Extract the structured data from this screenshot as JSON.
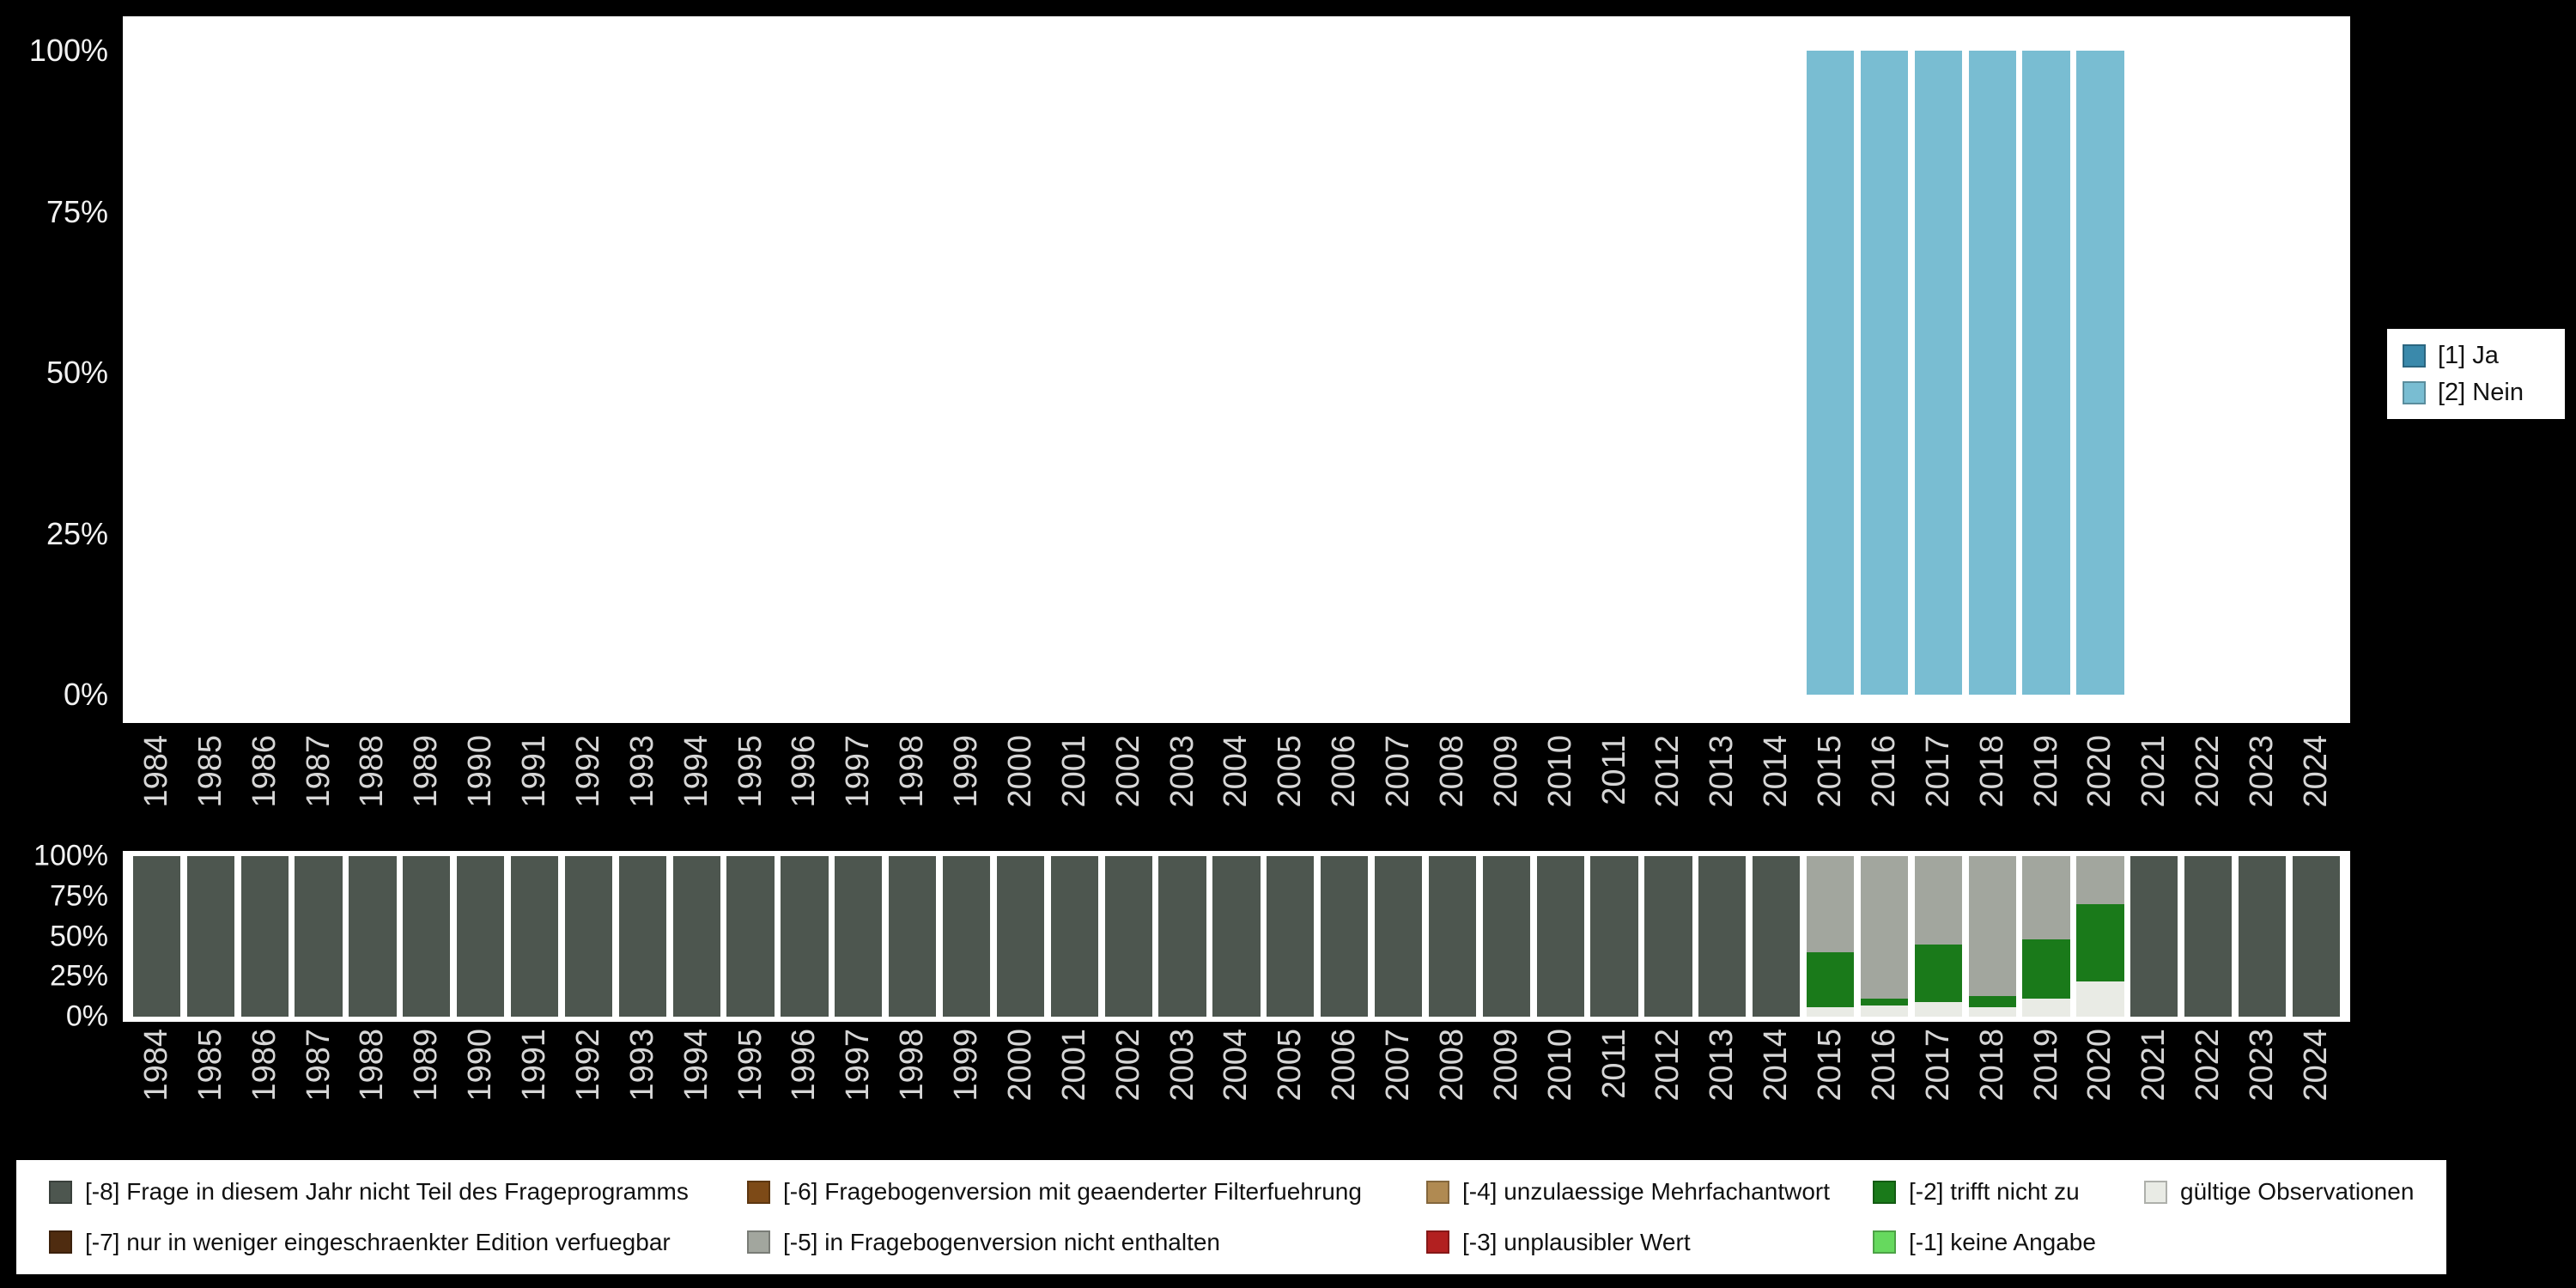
{
  "colors": {
    "background": "#000000",
    "panel": "#ffffff",
    "ja_blue": "#3a89ab",
    "nein_blue": "#79bdd2",
    "axis_text": "#d6d6d6",
    "ytick_text": "#f2f2f2"
  },
  "legend_top": {
    "items": [
      {
        "label": "[1] Ja",
        "color": "#3a89ab"
      },
      {
        "label": "[2] Nein",
        "color": "#79bdd2"
      }
    ]
  },
  "legend_bottom": {
    "items": [
      {
        "label": "[-8] Frage in diesem Jahr nicht Teil des Frageprogramms",
        "color": "#4d564f"
      },
      {
        "label": "[-6] Fragebogenversion mit geaenderter Filterfuehrung",
        "color": "#7d4a17"
      },
      {
        "label": "[-4] unzulaessige Mehrfachantwort",
        "color": "#b08a52"
      },
      {
        "label": "[-2] trifft nicht zu",
        "color": "#1a7a1a"
      },
      {
        "label": "gültige Observationen",
        "color": "#e9ebe5"
      },
      {
        "label": "[-7] nur in weniger eingeschraenkter Edition verfuegbar",
        "color": "#4f2c10"
      },
      {
        "label": "[-5] in Fragebogenversion nicht enthalten",
        "color": "#a2a69e"
      },
      {
        "label": "[-3] unplausibler Wert",
        "color": "#b22020"
      },
      {
        "label": "[-1] keine Angabe",
        "color": "#66d95e"
      }
    ]
  },
  "chart_data": [
    {
      "type": "bar",
      "stacked": true,
      "normalized": "percent",
      "title": "",
      "xlabel": "",
      "ylabel": "",
      "ylim": [
        0,
        100
      ],
      "grid": false,
      "legend_position": "right",
      "yticks": [
        "0%",
        "25%",
        "50%",
        "75%",
        "100%"
      ],
      "x": [
        "1984",
        "1985",
        "1986",
        "1987",
        "1988",
        "1989",
        "1990",
        "1991",
        "1992",
        "1993",
        "1994",
        "1995",
        "1996",
        "1997",
        "1998",
        "1999",
        "2000",
        "2001",
        "2002",
        "2003",
        "2004",
        "2005",
        "2006",
        "2007",
        "2008",
        "2009",
        "2010",
        "2011",
        "2012",
        "2013",
        "2014",
        "2015",
        "2016",
        "2017",
        "2018",
        "2019",
        "2020",
        "2021",
        "2022",
        "2023",
        "2024"
      ],
      "series": [
        {
          "name": "[1] Ja",
          "color": "#3a89ab",
          "values": [
            0,
            0,
            0,
            0,
            0,
            0,
            0,
            0,
            0,
            0,
            0,
            0,
            0,
            0,
            0,
            0,
            0,
            0,
            0,
            0,
            0,
            0,
            0,
            0,
            0,
            0,
            0,
            0,
            0,
            0,
            0,
            0,
            0,
            0,
            0,
            0,
            0,
            0,
            0,
            0,
            0
          ]
        },
        {
          "name": "[2] Nein",
          "color": "#79bdd2",
          "values": [
            0,
            0,
            0,
            0,
            0,
            0,
            0,
            0,
            0,
            0,
            0,
            0,
            0,
            0,
            0,
            0,
            0,
            0,
            0,
            0,
            0,
            0,
            0,
            0,
            0,
            0,
            0,
            0,
            0,
            0,
            0,
            100,
            100,
            100,
            100,
            100,
            100,
            0,
            0,
            0,
            0
          ]
        }
      ]
    },
    {
      "type": "bar",
      "stacked": true,
      "normalized": "percent",
      "title": "",
      "xlabel": "",
      "ylabel": "",
      "ylim": [
        0,
        100
      ],
      "grid": false,
      "legend_position": "bottom",
      "yticks": [
        "0%",
        "25%",
        "50%",
        "75%",
        "100%"
      ],
      "x": [
        "1984",
        "1985",
        "1986",
        "1987",
        "1988",
        "1989",
        "1990",
        "1991",
        "1992",
        "1993",
        "1994",
        "1995",
        "1996",
        "1997",
        "1998",
        "1999",
        "2000",
        "2001",
        "2002",
        "2003",
        "2004",
        "2005",
        "2006",
        "2007",
        "2008",
        "2009",
        "2010",
        "2011",
        "2012",
        "2013",
        "2014",
        "2015",
        "2016",
        "2017",
        "2018",
        "2019",
        "2020",
        "2021",
        "2022",
        "2023",
        "2024"
      ],
      "series": [
        {
          "name": "[-8] Frage in diesem Jahr nicht Teil des Frageprogramms",
          "color": "#4d564f",
          "values": [
            100,
            100,
            100,
            100,
            100,
            100,
            100,
            100,
            100,
            100,
            100,
            100,
            100,
            100,
            100,
            100,
            100,
            100,
            100,
            100,
            100,
            100,
            100,
            100,
            100,
            100,
            100,
            100,
            100,
            100,
            100,
            0,
            0,
            0,
            0,
            0,
            0,
            100,
            100,
            100,
            100
          ]
        },
        {
          "name": "[-7] nur in weniger eingeschraenkter Edition verfuegbar",
          "color": "#4f2c10",
          "values": [
            0,
            0,
            0,
            0,
            0,
            0,
            0,
            0,
            0,
            0,
            0,
            0,
            0,
            0,
            0,
            0,
            0,
            0,
            0,
            0,
            0,
            0,
            0,
            0,
            0,
            0,
            0,
            0,
            0,
            0,
            0,
            0,
            0,
            0,
            0,
            0,
            0,
            0,
            0,
            0,
            0
          ]
        },
        {
          "name": "[-6] Fragebogenversion mit geaenderter Filterfuehrung",
          "color": "#7d4a17",
          "values": [
            0,
            0,
            0,
            0,
            0,
            0,
            0,
            0,
            0,
            0,
            0,
            0,
            0,
            0,
            0,
            0,
            0,
            0,
            0,
            0,
            0,
            0,
            0,
            0,
            0,
            0,
            0,
            0,
            0,
            0,
            0,
            0,
            0,
            0,
            0,
            0,
            0,
            0,
            0,
            0,
            0
          ]
        },
        {
          "name": "[-5] in Fragebogenversion nicht enthalten",
          "color": "#a2a69e",
          "values": [
            0,
            0,
            0,
            0,
            0,
            0,
            0,
            0,
            0,
            0,
            0,
            0,
            0,
            0,
            0,
            0,
            0,
            0,
            0,
            0,
            0,
            0,
            0,
            0,
            0,
            0,
            0,
            0,
            0,
            0,
            0,
            60,
            89,
            55,
            87,
            52,
            30,
            0,
            0,
            0,
            0
          ]
        },
        {
          "name": "[-4] unzulaessige Mehrfachantwort",
          "color": "#b08a52",
          "values": [
            0,
            0,
            0,
            0,
            0,
            0,
            0,
            0,
            0,
            0,
            0,
            0,
            0,
            0,
            0,
            0,
            0,
            0,
            0,
            0,
            0,
            0,
            0,
            0,
            0,
            0,
            0,
            0,
            0,
            0,
            0,
            0,
            0,
            0,
            0,
            0,
            0,
            0,
            0,
            0,
            0
          ]
        },
        {
          "name": "[-3] unplausibler Wert",
          "color": "#b22020",
          "values": [
            0,
            0,
            0,
            0,
            0,
            0,
            0,
            0,
            0,
            0,
            0,
            0,
            0,
            0,
            0,
            0,
            0,
            0,
            0,
            0,
            0,
            0,
            0,
            0,
            0,
            0,
            0,
            0,
            0,
            0,
            0,
            0,
            0,
            0,
            0,
            0,
            0,
            0,
            0,
            0,
            0
          ]
        },
        {
          "name": "[-2] trifft nicht zu",
          "color": "#1a7a1a",
          "values": [
            0,
            0,
            0,
            0,
            0,
            0,
            0,
            0,
            0,
            0,
            0,
            0,
            0,
            0,
            0,
            0,
            0,
            0,
            0,
            0,
            0,
            0,
            0,
            0,
            0,
            0,
            0,
            0,
            0,
            0,
            0,
            34,
            4,
            36,
            7,
            37,
            48,
            0,
            0,
            0,
            0
          ]
        },
        {
          "name": "[-1] keine Angabe",
          "color": "#66d95e",
          "values": [
            0,
            0,
            0,
            0,
            0,
            0,
            0,
            0,
            0,
            0,
            0,
            0,
            0,
            0,
            0,
            0,
            0,
            0,
            0,
            0,
            0,
            0,
            0,
            0,
            0,
            0,
            0,
            0,
            0,
            0,
            0,
            0,
            0,
            0,
            0,
            0,
            0,
            0,
            0,
            0,
            0
          ]
        },
        {
          "name": "gültige Observationen",
          "color": "#e9ebe5",
          "values": [
            0,
            0,
            0,
            0,
            0,
            0,
            0,
            0,
            0,
            0,
            0,
            0,
            0,
            0,
            0,
            0,
            0,
            0,
            0,
            0,
            0,
            0,
            0,
            0,
            0,
            0,
            0,
            0,
            0,
            0,
            0,
            6,
            7,
            9,
            6,
            11,
            22,
            0,
            0,
            0,
            0
          ]
        }
      ]
    }
  ]
}
